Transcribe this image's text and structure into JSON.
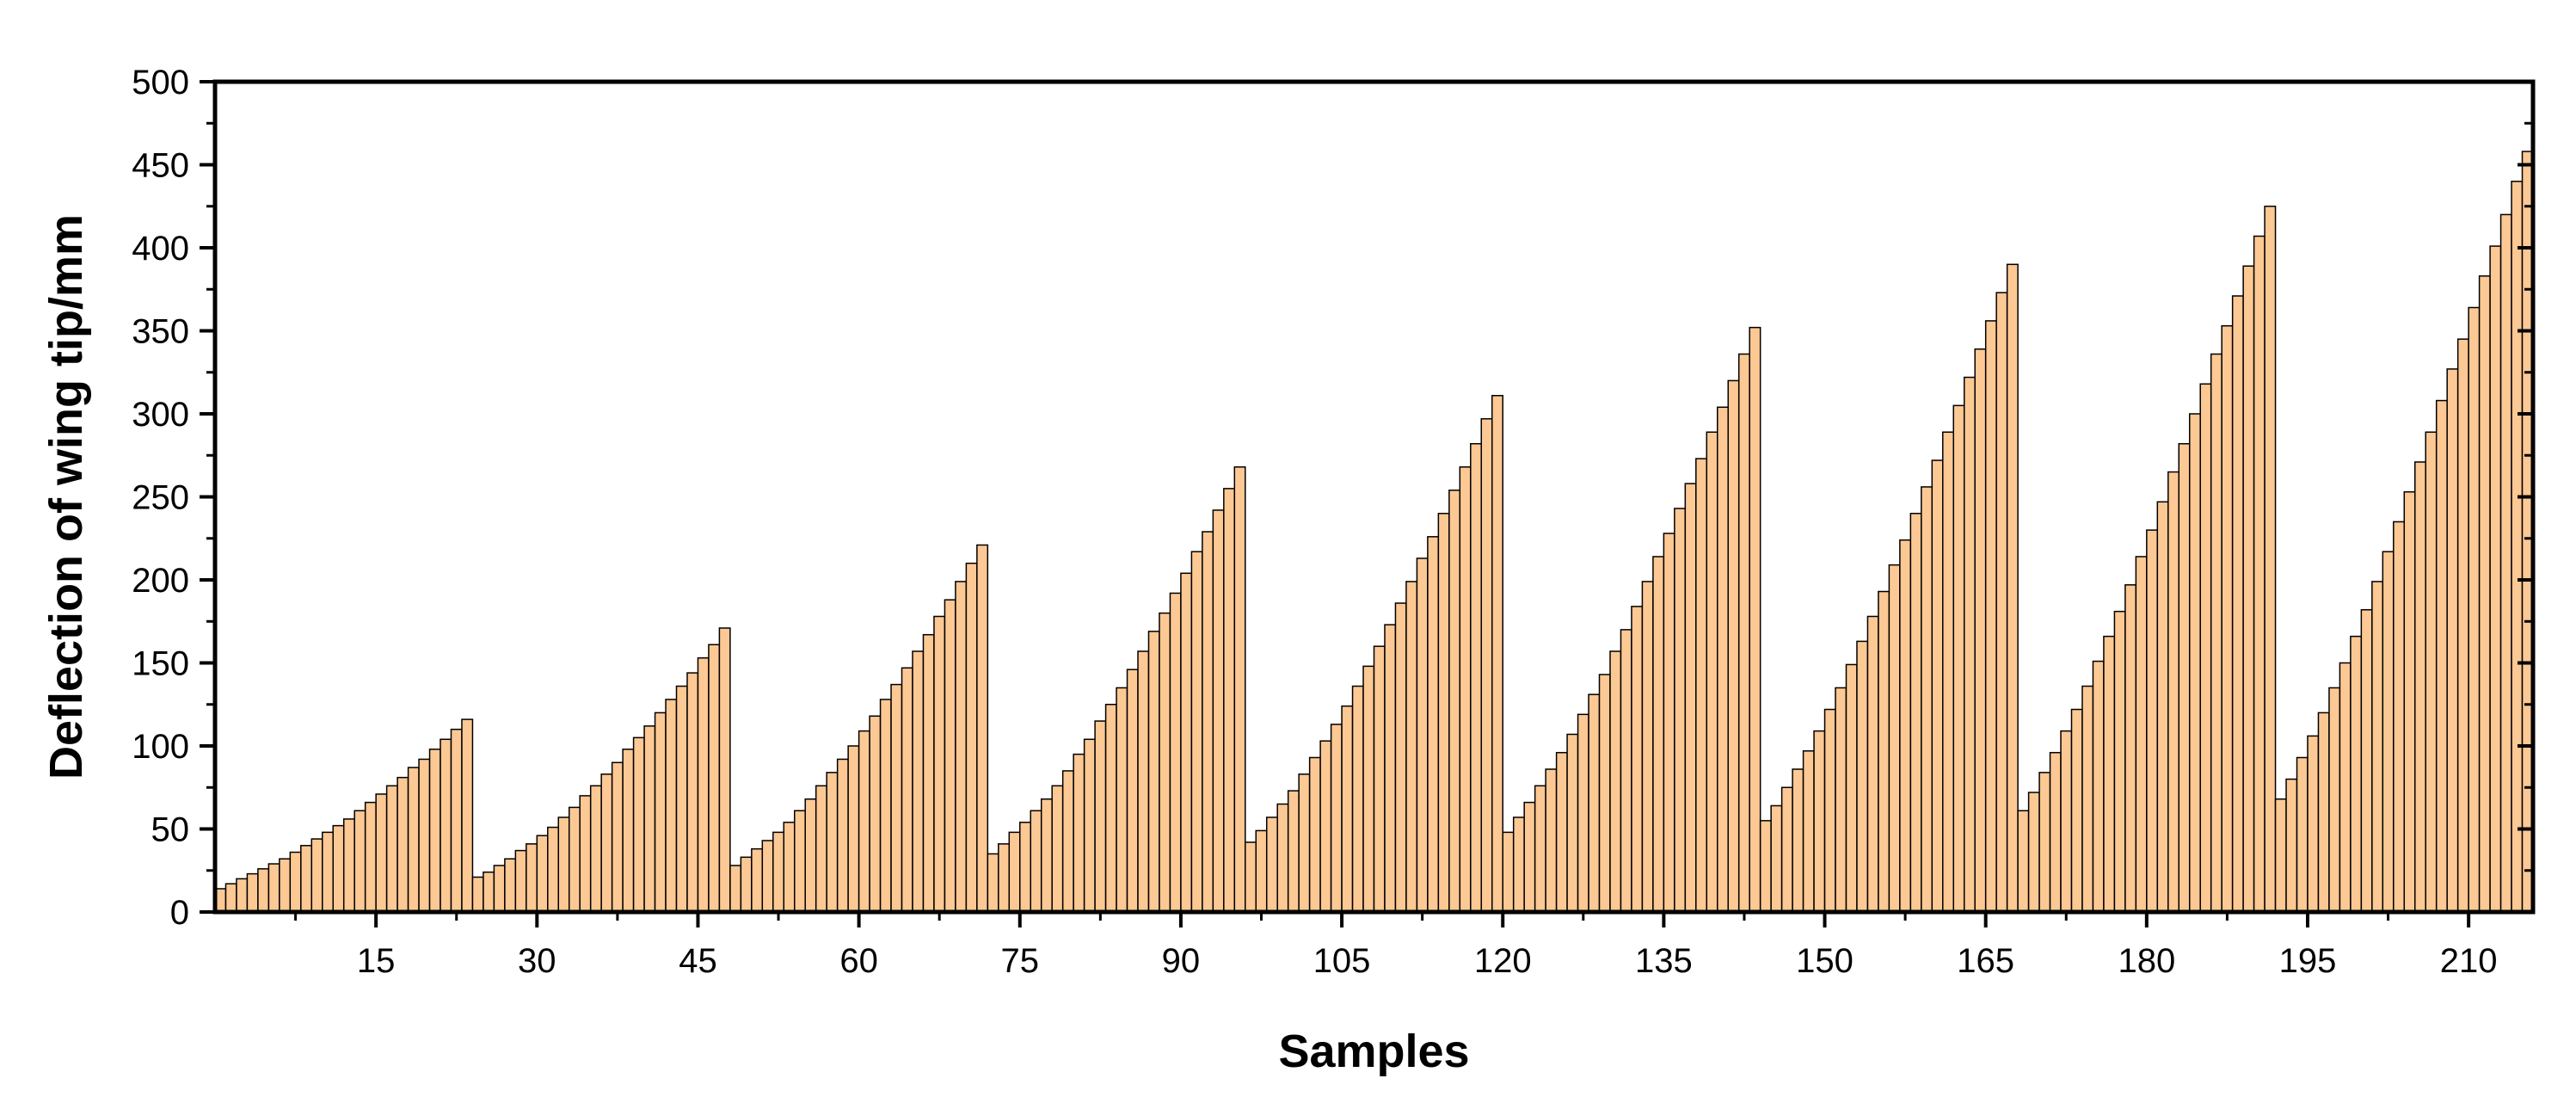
{
  "chart_data": {
    "type": "bar",
    "xlabel": "Samples",
    "ylabel": "Deflection of wing tip/mm",
    "xlim": [
      0,
      216
    ],
    "ylim": [
      0,
      500
    ],
    "x_ticks": [
      15,
      30,
      45,
      60,
      75,
      90,
      105,
      120,
      135,
      150,
      165,
      180,
      195,
      210
    ],
    "y_ticks": [
      0,
      50,
      100,
      150,
      200,
      250,
      300,
      350,
      400,
      450,
      500
    ],
    "grid": false,
    "legend": "none",
    "bar_color": "#FCC894",
    "bar_edge_color": "#000000",
    "x": [
      1,
      2,
      3,
      4,
      5,
      6,
      7,
      8,
      9,
      10,
      11,
      12,
      13,
      14,
      15,
      16,
      17,
      18,
      19,
      20,
      21,
      22,
      23,
      24,
      25,
      26,
      27,
      28,
      29,
      30,
      31,
      32,
      33,
      34,
      35,
      36,
      37,
      38,
      39,
      40,
      41,
      42,
      43,
      44,
      45,
      46,
      47,
      48,
      49,
      50,
      51,
      52,
      53,
      54,
      55,
      56,
      57,
      58,
      59,
      60,
      61,
      62,
      63,
      64,
      65,
      66,
      67,
      68,
      69,
      70,
      71,
      72,
      73,
      74,
      75,
      76,
      77,
      78,
      79,
      80,
      81,
      82,
      83,
      84,
      85,
      86,
      87,
      88,
      89,
      90,
      91,
      92,
      93,
      94,
      95,
      96,
      97,
      98,
      99,
      100,
      101,
      102,
      103,
      104,
      105,
      106,
      107,
      108,
      109,
      110,
      111,
      112,
      113,
      114,
      115,
      116,
      117,
      118,
      119,
      120,
      121,
      122,
      123,
      124,
      125,
      126,
      127,
      128,
      129,
      130,
      131,
      132,
      133,
      134,
      135,
      136,
      137,
      138,
      139,
      140,
      141,
      142,
      143,
      144,
      145,
      146,
      147,
      148,
      149,
      150,
      151,
      152,
      153,
      154,
      155,
      156,
      157,
      158,
      159,
      160,
      161,
      162,
      163,
      164,
      165,
      166,
      167,
      168,
      169,
      170,
      171,
      172,
      173,
      174,
      175,
      176,
      177,
      178,
      179,
      180,
      181,
      182,
      183,
      184,
      185,
      186,
      187,
      188,
      189,
      190,
      191,
      192,
      193,
      194,
      195,
      196,
      197,
      198,
      199,
      200,
      201,
      202,
      203,
      204,
      205,
      206,
      207,
      208,
      209,
      210,
      211,
      212,
      213,
      214,
      215,
      216
    ],
    "values": [
      14,
      17,
      20,
      23,
      26,
      29,
      32,
      36,
      40,
      44,
      48,
      52,
      56,
      61,
      66,
      71,
      76,
      81,
      87,
      92,
      98,
      104,
      110,
      116,
      21,
      24,
      28,
      32,
      37,
      41,
      46,
      51,
      57,
      63,
      70,
      76,
      83,
      90,
      98,
      105,
      112,
      120,
      128,
      136,
      144,
      153,
      161,
      171,
      28,
      33,
      38,
      43,
      48,
      54,
      61,
      68,
      76,
      84,
      92,
      100,
      109,
      118,
      128,
      137,
      147,
      157,
      167,
      178,
      188,
      199,
      210,
      221,
      35,
      41,
      48,
      54,
      61,
      68,
      76,
      85,
      95,
      104,
      115,
      125,
      135,
      146,
      157,
      169,
      180,
      192,
      204,
      217,
      229,
      242,
      255,
      268,
      42,
      49,
      57,
      65,
      73,
      83,
      93,
      103,
      113,
      124,
      136,
      148,
      160,
      173,
      186,
      199,
      213,
      226,
      240,
      254,
      268,
      282,
      297,
      311,
      48,
      57,
      66,
      76,
      86,
      96,
      107,
      119,
      131,
      143,
      157,
      170,
      184,
      199,
      214,
      228,
      243,
      258,
      273,
      289,
      304,
      320,
      336,
      352,
      55,
      64,
      75,
      86,
      97,
      109,
      122,
      135,
      149,
      163,
      178,
      193,
      209,
      224,
      240,
      256,
      272,
      289,
      305,
      322,
      339,
      356,
      373,
      390,
      61,
      72,
      84,
      96,
      109,
      122,
      136,
      151,
      166,
      181,
      197,
      214,
      230,
      247,
      265,
      282,
      300,
      318,
      336,
      353,
      371,
      389,
      407,
      425,
      68,
      80,
      93,
      106,
      120,
      135,
      150,
      166,
      182,
      199,
      217,
      235,
      253,
      271,
      289,
      308,
      327,
      345,
      364,
      383,
      401,
      420,
      440,
      458
    ]
  }
}
